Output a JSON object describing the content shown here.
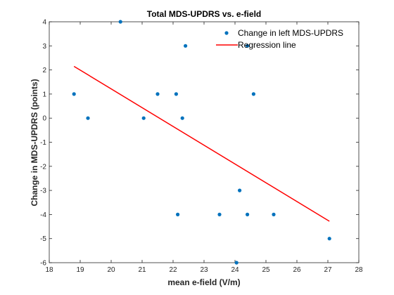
{
  "chart_data": {
    "type": "scatter",
    "title": "Total MDS-UPDRS vs. e-field",
    "xlabel": "mean e-field (V/m)",
    "ylabel": "Change in MDS-UPDRS (points)",
    "xlim": [
      18,
      28
    ],
    "ylim": [
      -6,
      4
    ],
    "xticks": [
      18,
      19,
      20,
      21,
      22,
      23,
      24,
      25,
      26,
      27,
      28
    ],
    "yticks": [
      4,
      3,
      2,
      1,
      0,
      -1,
      -2,
      -3,
      -4,
      -5,
      -6
    ],
    "grid": false,
    "legend_position": "top-right",
    "series": [
      {
        "name": "Change in left MDS-UPDRS",
        "kind": "scatter",
        "color": "#0072BD",
        "points": [
          {
            "x": 18.8,
            "y": 1
          },
          {
            "x": 19.25,
            "y": 0
          },
          {
            "x": 20.3,
            "y": 4
          },
          {
            "x": 21.05,
            "y": 0
          },
          {
            "x": 21.5,
            "y": 1
          },
          {
            "x": 22.1,
            "y": 1
          },
          {
            "x": 22.15,
            "y": -4
          },
          {
            "x": 22.3,
            "y": 0
          },
          {
            "x": 22.4,
            "y": 3
          },
          {
            "x": 23.5,
            "y": -4
          },
          {
            "x": 24.05,
            "y": -6
          },
          {
            "x": 24.15,
            "y": -3
          },
          {
            "x": 24.4,
            "y": -4
          },
          {
            "x": 24.4,
            "y": 3
          },
          {
            "x": 24.6,
            "y": 1
          },
          {
            "x": 25.25,
            "y": -4
          },
          {
            "x": 27.05,
            "y": -5
          }
        ]
      },
      {
        "name": "Regression line",
        "kind": "line",
        "color": "#FF0000",
        "points": [
          {
            "x": 18.8,
            "y": 2.15
          },
          {
            "x": 27.05,
            "y": -4.28
          }
        ]
      }
    ]
  }
}
